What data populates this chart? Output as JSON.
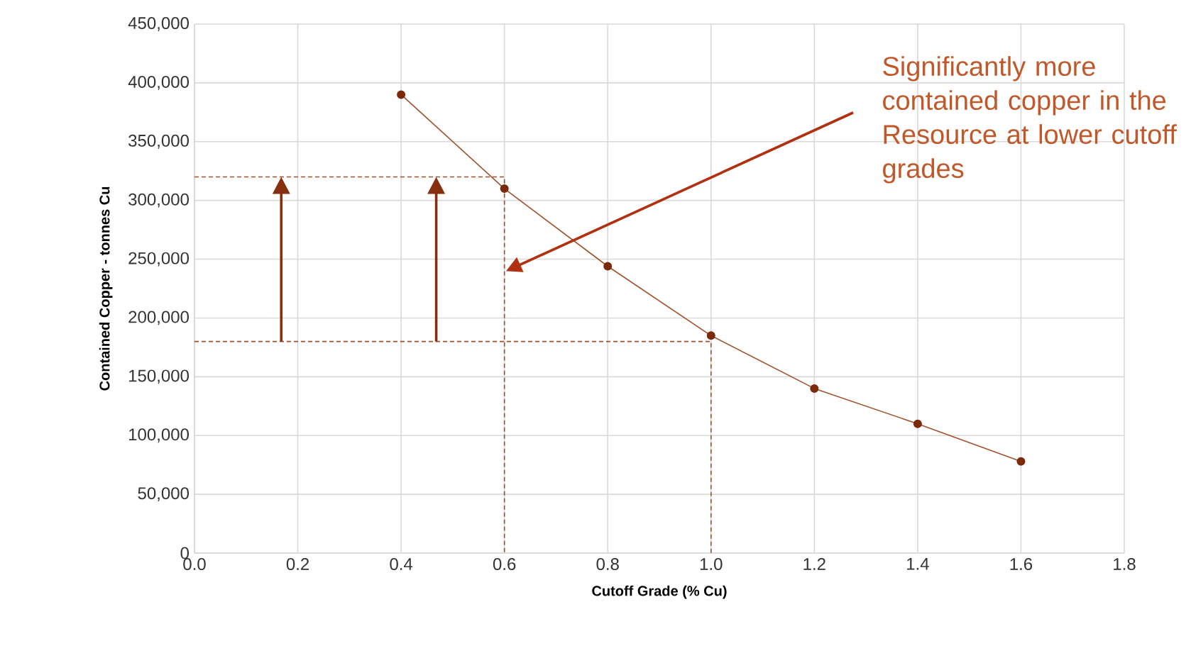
{
  "chart_data": {
    "type": "line",
    "xlabel": "Cutoff Grade (% Cu)",
    "ylabel": "Contained Copper - tonnes Cu",
    "xlim": [
      0,
      1.8
    ],
    "ylim": [
      0,
      450000
    ],
    "xticks": [
      {
        "value": 0,
        "label": "0.0"
      },
      {
        "value": 0.2,
        "label": "0.2"
      },
      {
        "value": 0.4,
        "label": "0.4"
      },
      {
        "value": 0.6,
        "label": "0.6"
      },
      {
        "value": 0.8,
        "label": "0.8"
      },
      {
        "value": 1.0,
        "label": "1.0"
      },
      {
        "value": 1.2,
        "label": "1.2"
      },
      {
        "value": 1.4,
        "label": "1.4"
      },
      {
        "value": 1.6,
        "label": "1.6"
      },
      {
        "value": 1.8,
        "label": "1.8"
      }
    ],
    "yticks": [
      0,
      {
        "value": 50000,
        "label": "50,000"
      },
      {
        "value": 100000,
        "label": "100,000"
      },
      {
        "value": 150000,
        "label": "150,000"
      },
      {
        "value": 200000,
        "label": "200,000"
      },
      {
        "value": 250000,
        "label": "250,000"
      },
      {
        "value": 300000,
        "label": "300,000"
      },
      {
        "value": 350000,
        "label": "350,000"
      },
      {
        "value": 400000,
        "label": "400,000"
      },
      {
        "value": 450000,
        "label": "450,000"
      }
    ],
    "grid": true,
    "series": [
      {
        "color": "#a0522d",
        "marker": "circle",
        "line_style": "solid",
        "x": [
          0.4,
          0.6,
          0.8,
          1.0,
          1.2,
          1.4,
          1.6
        ],
        "values": [
          390000,
          310000,
          244000,
          185000,
          140000,
          110000,
          78000
        ]
      },
      {
        "color": "#a0522d",
        "marker": "none",
        "line_style": "dashed",
        "x": [
          0,
          0.6,
          0.6
        ],
        "values": [
          320000,
          320000,
          0
        ]
      },
      {
        "color": "#a0522d",
        "marker": "none",
        "line_style": "dashed",
        "x": [
          0,
          1.0,
          1.0
        ],
        "values": [
          180000,
          180000,
          0
        ]
      }
    ],
    "annotations": [
      "Significantly more contained copper in the Resource at lower cutoff grades"
    ]
  }
}
